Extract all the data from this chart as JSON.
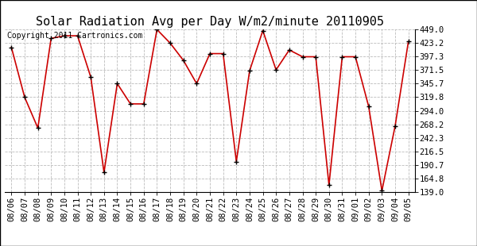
{
  "title": "Solar Radiation Avg per Day W/m2/minute 20110905",
  "copyright_text": "Copyright 2011 Cartronics.com",
  "dates": [
    "08/06",
    "08/07",
    "08/08",
    "08/09",
    "08/10",
    "08/11",
    "08/12",
    "08/13",
    "08/14",
    "08/15",
    "08/16",
    "08/17",
    "08/18",
    "08/19",
    "08/20",
    "08/21",
    "08/22",
    "08/23",
    "08/24",
    "08/25",
    "08/26",
    "08/27",
    "08/28",
    "08/29",
    "08/30",
    "08/31",
    "09/01",
    "09/02",
    "09/03",
    "09/04",
    "09/05"
  ],
  "values": [
    415.0,
    319.8,
    261.0,
    432.0,
    437.0,
    437.0,
    358.0,
    176.0,
    345.7,
    307.0,
    307.0,
    449.0,
    423.0,
    390.0,
    345.7,
    403.0,
    403.0,
    197.0,
    370.0,
    447.0,
    372.0,
    410.0,
    397.0,
    397.0,
    152.0,
    397.0,
    397.0,
    302.0,
    141.0,
    265.0,
    426.0
  ],
  "y_ticks": [
    139.0,
    164.8,
    190.7,
    216.5,
    242.3,
    268.2,
    294.0,
    319.8,
    345.7,
    371.5,
    397.3,
    423.2,
    449.0
  ],
  "ymin": 139.0,
  "ymax": 449.0,
  "line_color": "#cc0000",
  "marker_color": "#000000",
  "bg_color": "#ffffff",
  "grid_color": "#bbbbbb",
  "title_fontsize": 11,
  "tick_fontsize": 7.5,
  "copyright_fontsize": 7
}
